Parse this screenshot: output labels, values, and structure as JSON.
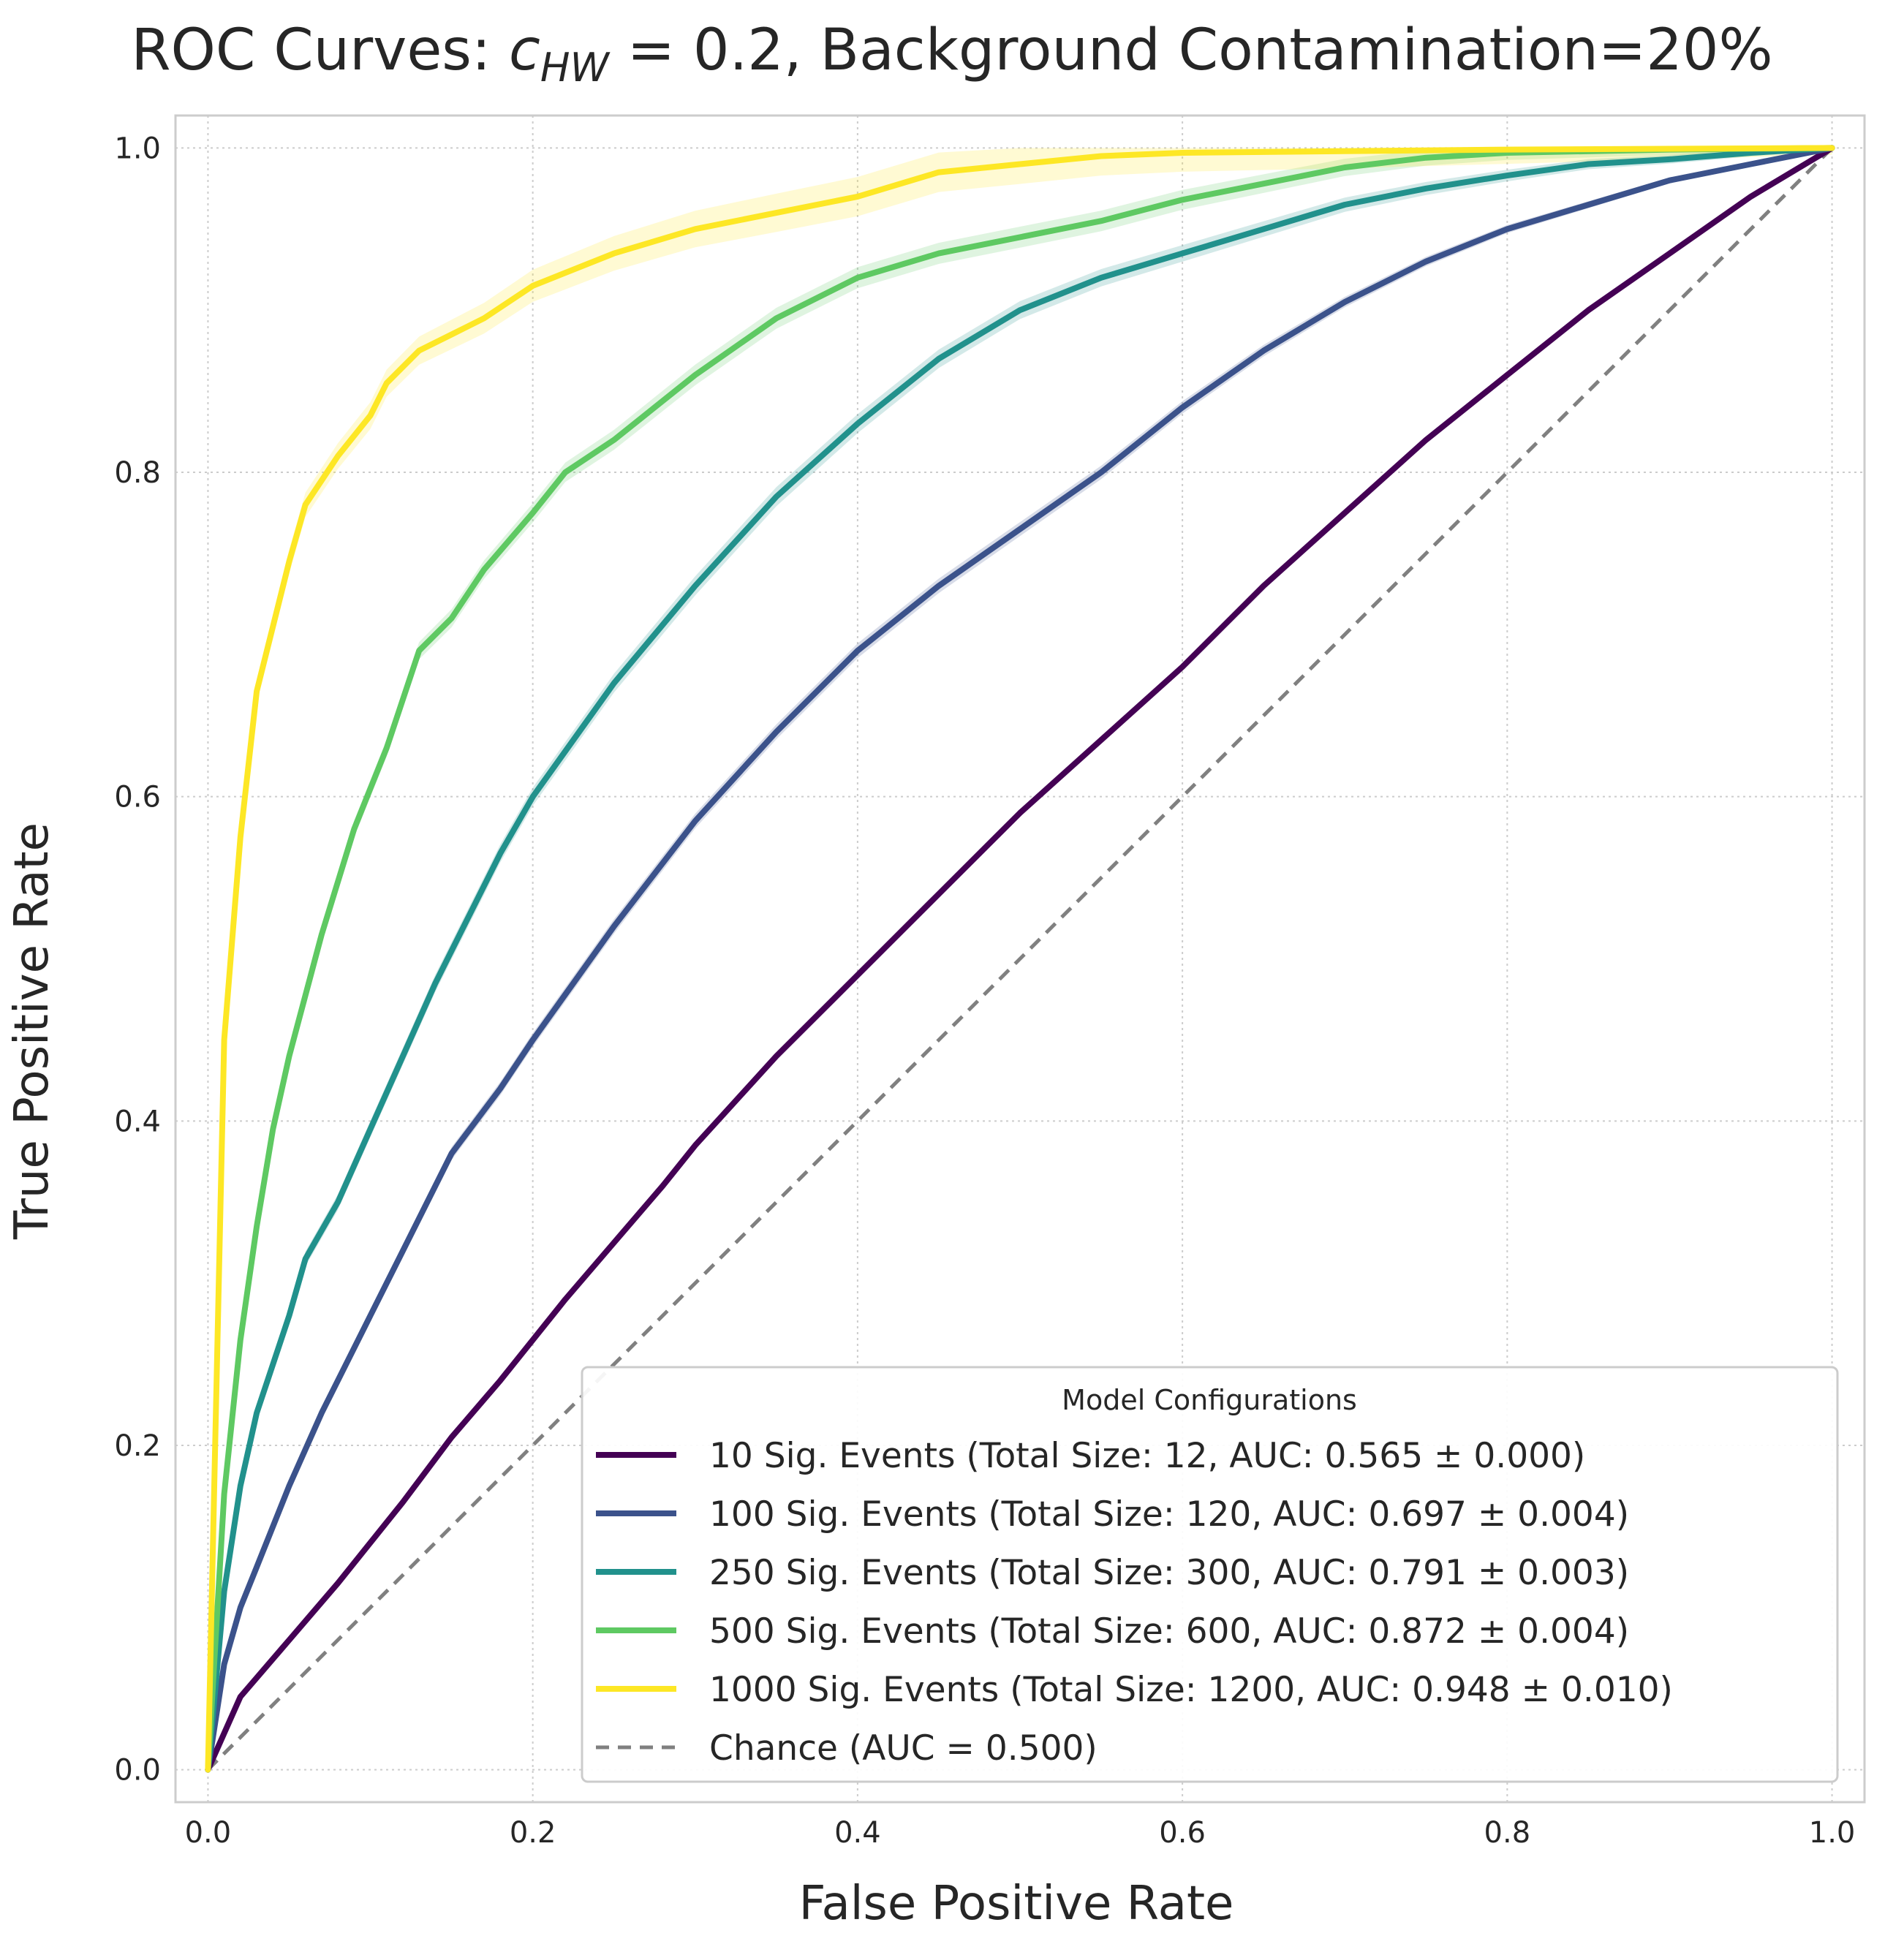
{
  "chart_data": {
    "type": "line",
    "title_prefix": "ROC Curves: ",
    "title_symbol": "c",
    "title_subscript": "HW",
    "title_suffix": " = 0.2, Background Contamination=20%",
    "xlabel": "False Positive Rate",
    "ylabel": "True Positive Rate",
    "xlim": [
      -0.02,
      1.02
    ],
    "ylim": [
      -0.02,
      1.02
    ],
    "grid": true,
    "x_ticks": [
      {
        "value": 0.0,
        "label": "0.0"
      },
      {
        "value": 0.2,
        "label": "0.2"
      },
      {
        "value": 0.4,
        "label": "0.4"
      },
      {
        "value": 0.6,
        "label": "0.6"
      },
      {
        "value": 0.8,
        "label": "0.8"
      },
      {
        "value": 1.0,
        "label": "1.0"
      }
    ],
    "y_ticks": [
      {
        "value": 0.0,
        "label": "0.0"
      },
      {
        "value": 0.2,
        "label": "0.2"
      },
      {
        "value": 0.4,
        "label": "0.4"
      },
      {
        "value": 0.6,
        "label": "0.6"
      },
      {
        "value": 0.8,
        "label": "0.8"
      },
      {
        "value": 1.0,
        "label": "1.0"
      }
    ],
    "legend": {
      "title": "Model Configurations",
      "location": "lower-right"
    },
    "series": [
      {
        "name": "10 Sig. Events (Total Size: 12, AUC: 0.565 ± 0.000)",
        "color": "#440154",
        "band": 0.002,
        "x": [
          0,
          0.02,
          0.05,
          0.08,
          0.1,
          0.12,
          0.15,
          0.18,
          0.2,
          0.22,
          0.25,
          0.28,
          0.3,
          0.35,
          0.4,
          0.45,
          0.5,
          0.55,
          0.6,
          0.65,
          0.7,
          0.75,
          0.8,
          0.85,
          0.9,
          0.95,
          1.0
        ],
        "y": [
          0,
          0.045,
          0.08,
          0.115,
          0.14,
          0.165,
          0.205,
          0.24,
          0.265,
          0.29,
          0.325,
          0.36,
          0.385,
          0.44,
          0.49,
          0.54,
          0.59,
          0.635,
          0.68,
          0.73,
          0.775,
          0.82,
          0.86,
          0.9,
          0.935,
          0.97,
          1.0
        ]
      },
      {
        "name": "100 Sig. Events (Total Size: 120, AUC: 0.697 ± 0.004)",
        "color": "#3b528b",
        "band": 0.008,
        "x": [
          0,
          0.01,
          0.02,
          0.03,
          0.05,
          0.07,
          0.1,
          0.12,
          0.15,
          0.18,
          0.2,
          0.25,
          0.3,
          0.35,
          0.4,
          0.45,
          0.5,
          0.55,
          0.6,
          0.65,
          0.7,
          0.75,
          0.8,
          0.85,
          0.9,
          0.95,
          1.0
        ],
        "y": [
          0,
          0.065,
          0.1,
          0.125,
          0.175,
          0.22,
          0.28,
          0.32,
          0.38,
          0.42,
          0.45,
          0.52,
          0.585,
          0.64,
          0.69,
          0.73,
          0.765,
          0.8,
          0.84,
          0.875,
          0.905,
          0.93,
          0.95,
          0.965,
          0.98,
          0.99,
          1.0
        ]
      },
      {
        "name": "250 Sig. Events (Total Size: 300, AUC: 0.791 ± 0.003)",
        "color": "#21918c",
        "band": 0.012,
        "x": [
          0,
          0.01,
          0.02,
          0.03,
          0.05,
          0.06,
          0.08,
          0.1,
          0.12,
          0.14,
          0.16,
          0.18,
          0.2,
          0.25,
          0.3,
          0.35,
          0.4,
          0.45,
          0.5,
          0.55,
          0.6,
          0.65,
          0.7,
          0.75,
          0.8,
          0.85,
          0.9,
          0.95,
          1.0
        ],
        "y": [
          0,
          0.11,
          0.175,
          0.22,
          0.28,
          0.315,
          0.35,
          0.395,
          0.44,
          0.485,
          0.525,
          0.565,
          0.6,
          0.67,
          0.73,
          0.785,
          0.83,
          0.87,
          0.9,
          0.92,
          0.935,
          0.95,
          0.965,
          0.975,
          0.983,
          0.99,
          0.993,
          0.997,
          1.0
        ]
      },
      {
        "name": "500 Sig. Events (Total Size: 600, AUC: 0.872 ± 0.004)",
        "color": "#5ec962",
        "band": 0.015,
        "x": [
          0,
          0.01,
          0.02,
          0.03,
          0.04,
          0.05,
          0.07,
          0.09,
          0.11,
          0.13,
          0.15,
          0.17,
          0.2,
          0.22,
          0.25,
          0.3,
          0.35,
          0.4,
          0.45,
          0.5,
          0.55,
          0.6,
          0.65,
          0.7,
          0.75,
          0.8,
          0.9,
          1.0
        ],
        "y": [
          0,
          0.17,
          0.265,
          0.335,
          0.395,
          0.44,
          0.515,
          0.58,
          0.63,
          0.69,
          0.71,
          0.74,
          0.775,
          0.8,
          0.82,
          0.86,
          0.895,
          0.92,
          0.935,
          0.945,
          0.955,
          0.968,
          0.978,
          0.988,
          0.994,
          0.997,
          0.999,
          1.0
        ]
      },
      {
        "name": "1000 Sig. Events (Total Size: 1200, AUC: 0.948 ± 0.010)",
        "color": "#fde725",
        "band": 0.03,
        "x": [
          0,
          0.01,
          0.02,
          0.03,
          0.04,
          0.05,
          0.06,
          0.08,
          0.1,
          0.11,
          0.13,
          0.15,
          0.17,
          0.2,
          0.25,
          0.3,
          0.35,
          0.4,
          0.45,
          0.5,
          0.55,
          0.6,
          0.7,
          0.8,
          0.9,
          1.0
        ],
        "y": [
          0,
          0.45,
          0.575,
          0.665,
          0.705,
          0.745,
          0.78,
          0.81,
          0.835,
          0.855,
          0.875,
          0.885,
          0.895,
          0.915,
          0.935,
          0.95,
          0.96,
          0.97,
          0.985,
          0.99,
          0.995,
          0.997,
          0.998,
          0.999,
          0.9995,
          1.0
        ]
      },
      {
        "name": "Chance (AUC = 0.500)",
        "color": "#808080",
        "dashed": true,
        "x": [
          0,
          1
        ],
        "y": [
          0,
          1
        ]
      }
    ]
  }
}
